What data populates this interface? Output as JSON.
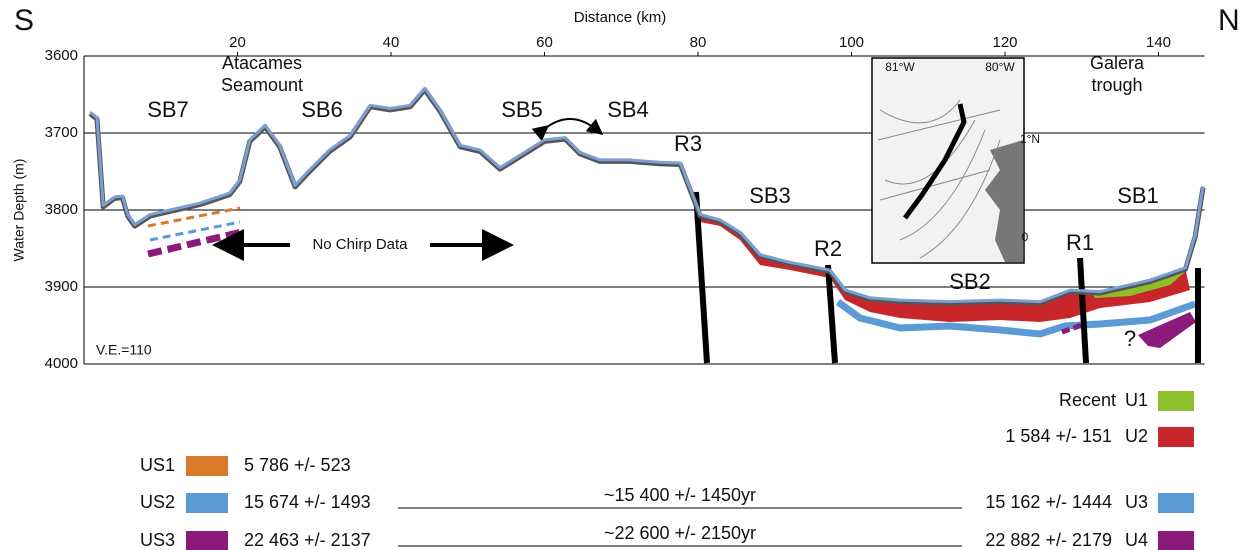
{
  "chart_data": {
    "type": "line",
    "title": "Distance (km)",
    "y_label": "Water Depth (m)",
    "ends": [
      "S",
      "N"
    ],
    "x": [
      0.8,
      1.7,
      2.5,
      4.0,
      5.0,
      5.7,
      6.6,
      8.6,
      11.2,
      15.1,
      19.0,
      20.3,
      21.6,
      23.6,
      25.5,
      27.5,
      29.4,
      32.0,
      34.7,
      37.3,
      39.9,
      42.5,
      44.4,
      46.4,
      49.0,
      51.6,
      54.2,
      56.8,
      60.0,
      62.7,
      64.6,
      67.2,
      71.1,
      75.0,
      77.7,
      80.3,
      82.9,
      85.5,
      88.1,
      92.0,
      97.2,
      99.2,
      102.4,
      106.3,
      112.8,
      119.3,
      124.6,
      128.5,
      132.4,
      138.9,
      143.5,
      144.8,
      145.8
    ],
    "series": [
      {
        "name": "Seafloor",
        "color": "#7b9fd4",
        "values": [
          3673,
          3680,
          3794,
          3783,
          3782,
          3806,
          3819,
          3806,
          3800,
          3791,
          3778,
          3761,
          3709,
          3690,
          3716,
          3768,
          3748,
          3722,
          3703,
          3664,
          3668,
          3664,
          3642,
          3670,
          3716,
          3722,
          3745,
          3729,
          3709,
          3706,
          3725,
          3735,
          3735,
          3738,
          3739,
          3806,
          3813,
          3829,
          3858,
          3868,
          3878,
          3904,
          3914,
          3917,
          3919,
          3917,
          3919,
          3904,
          3906,
          3891,
          3875,
          3832,
          3769
        ]
      }
    ],
    "xlim": [
      0,
      146
    ],
    "xticks": [
      20,
      40,
      60,
      80,
      100,
      120,
      140
    ],
    "ylim": [
      3600,
      4000
    ],
    "yticks": [
      3600,
      3700,
      3800,
      3900,
      4000
    ],
    "y_inverted": true,
    "grid": true,
    "labels": [
      "SB7",
      "SB6",
      "SB5",
      "SB4",
      "SB3",
      "SB2",
      "SB1",
      "R3",
      "R2",
      "R1",
      "Atacames",
      "Seamount",
      "Galera",
      "trough",
      "No Chirp Data",
      "V.E.=110",
      "?"
    ],
    "map_labels": [
      "81°W",
      "80°W",
      "1°N",
      "0"
    ],
    "legend_left": [
      {
        "name": "US1",
        "color": "#d97a2b",
        "age": "5 786 +/- 523"
      },
      {
        "name": "US2",
        "color": "#5b9bd5",
        "age": "15 674 +/- 1493"
      },
      {
        "name": "US3",
        "color": "#8b1a7a",
        "age": "22 463 +/- 2137"
      }
    ],
    "legend_right": [
      {
        "name": "U1",
        "color": "#8cbf2a",
        "age": "Recent"
      },
      {
        "name": "U2",
        "color": "#c8262a",
        "age": "1 584 +/- 151"
      },
      {
        "name": "U3",
        "color": "#5b9bd5",
        "age": "15 162 +/- 1444"
      },
      {
        "name": "U4",
        "color": "#8b1a7a",
        "age": "22 882 +/- 2179"
      }
    ],
    "correlations": [
      "~15 400 +/- 1450yr",
      "~22 600 +/- 2150yr"
    ]
  }
}
